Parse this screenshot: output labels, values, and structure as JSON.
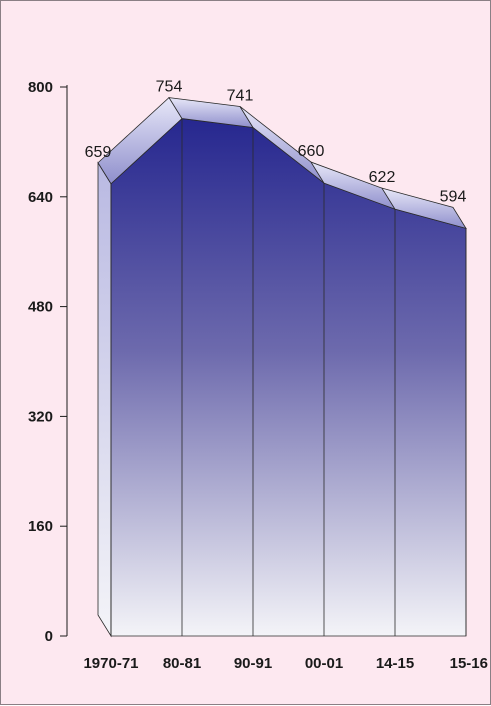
{
  "chart_data": {
    "type": "area",
    "title": "",
    "xlabel": "",
    "ylabel": "",
    "categories": [
      "1970-71",
      "80-81",
      "90-91",
      "00-01",
      "14-15",
      "15-16"
    ],
    "values": [
      659,
      754,
      741,
      660,
      622,
      594
    ],
    "ylim": [
      0,
      800
    ],
    "yticks": [
      "0",
      "160",
      "320",
      "480",
      "640",
      "800"
    ],
    "grid": false,
    "legend": "none",
    "colors": {
      "fill_top": "#26278f",
      "fill_bottom": "#f4f4f8",
      "top_face": "#c9c9ec",
      "side_face": "#dcdcf0",
      "background": "#fde8f0"
    }
  }
}
